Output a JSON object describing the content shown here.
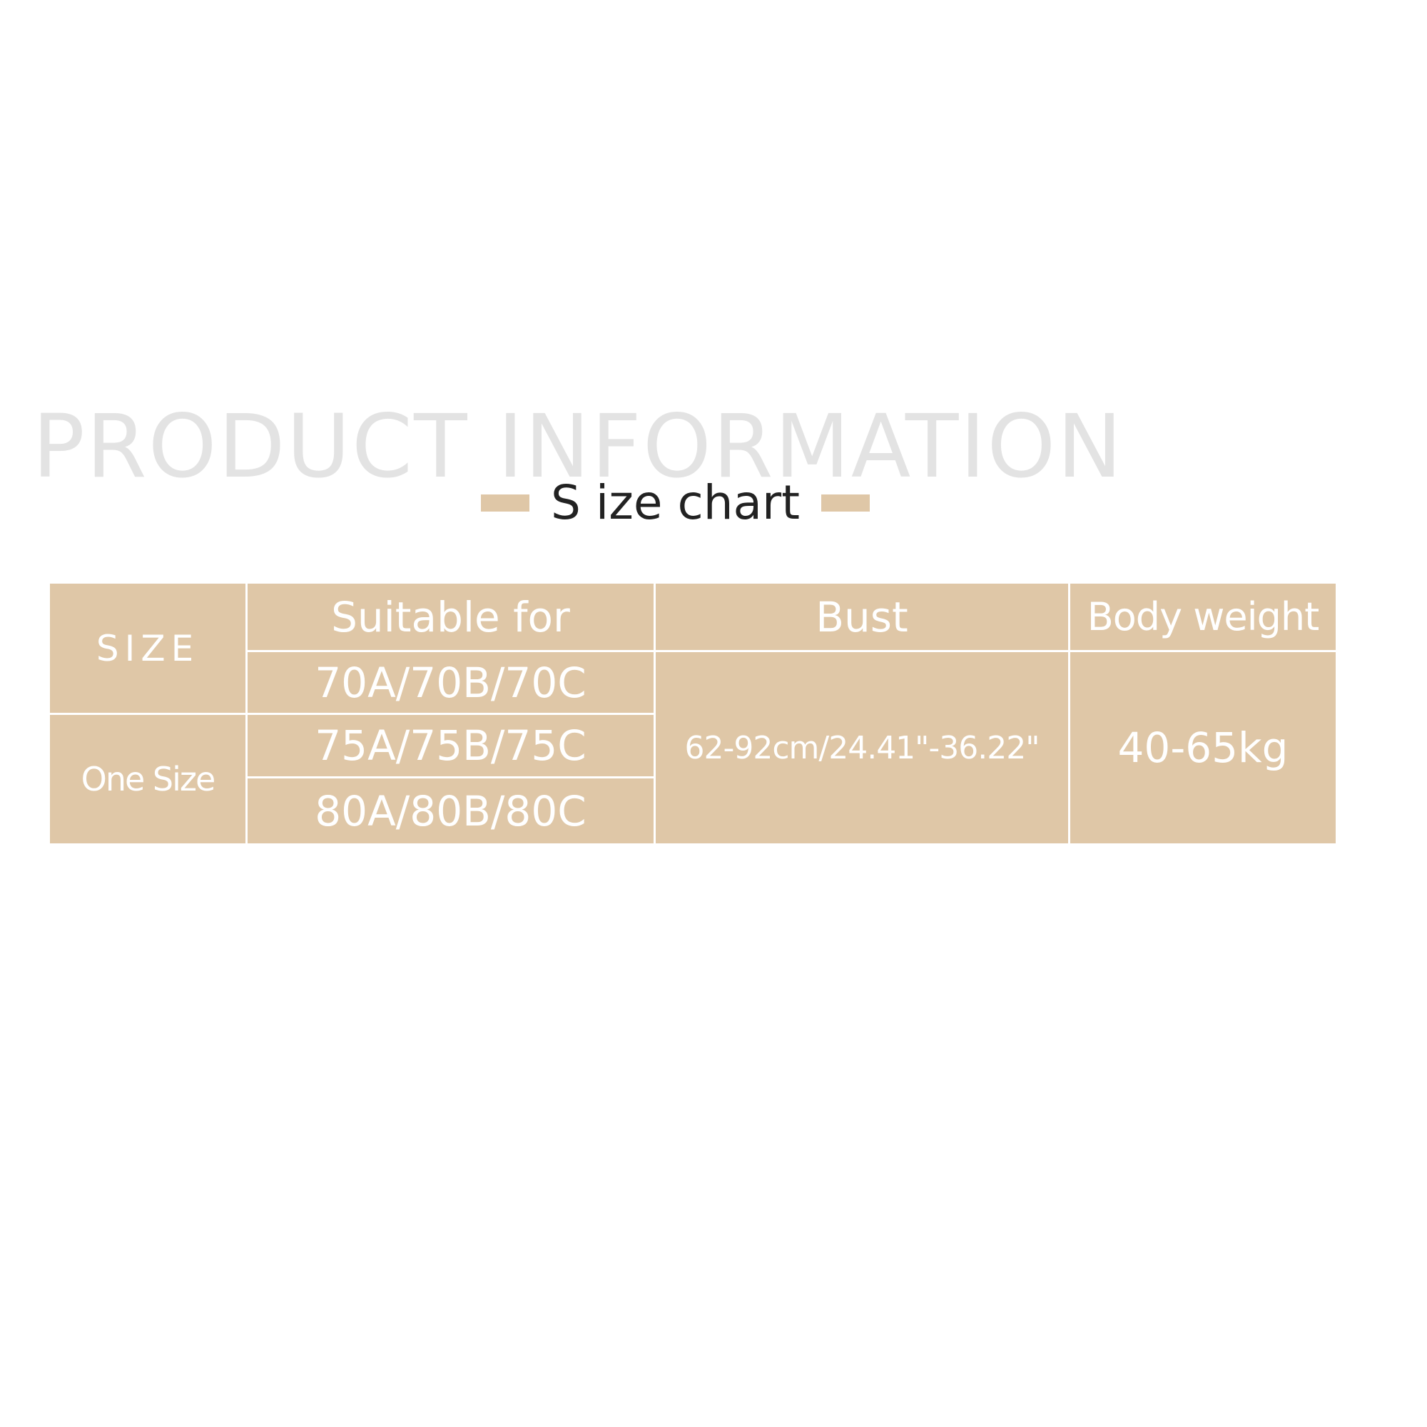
{
  "background_title": "PRODUCT INFORMATION",
  "subtitle": "S ize chart",
  "table": {
    "size_label": "SIZE",
    "size_value": "One Size",
    "headers": {
      "suitable_for": "Suitable for",
      "bust": "Bust",
      "body_weight": "Body weight"
    },
    "suitable_rows": [
      "70A/70B/70C",
      "75A/75B/75C",
      "80A/80B/80C"
    ],
    "bust_value": "62-92cm/24.41\"-36.22\"",
    "weight_value": "40-65kg"
  },
  "colors": {
    "table_fill": "#dfc7a7",
    "accent_bar": "#dfc7a7",
    "background_title": "#e3e3e3",
    "subtitle_text": "#222222",
    "table_text": "#ffffff"
  }
}
